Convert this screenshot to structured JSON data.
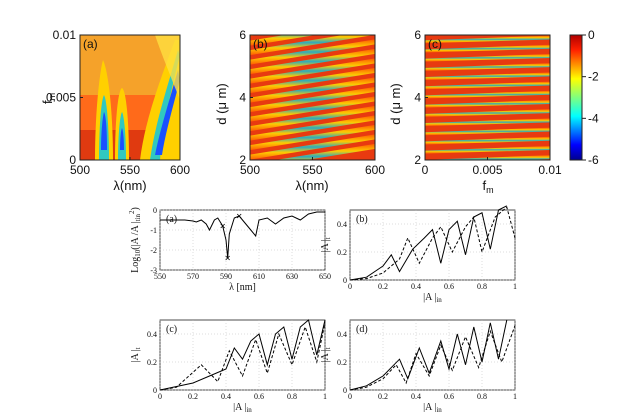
{
  "figure": {
    "top_row": {
      "panels": [
        {
          "label": "(a)",
          "xlabel": "λ(nm)",
          "ylabel": "f",
          "ylabel_sub": "m",
          "xticks": [
            "500",
            "550",
            "600"
          ],
          "yticks": [
            "0",
            "0.005",
            "0.01"
          ]
        },
        {
          "label": "(b)",
          "xlabel": "λ(nm)",
          "ylabel": "d (μ m)",
          "xticks": [
            "500",
            "550",
            "600"
          ],
          "yticks": [
            "2",
            "4",
            "6"
          ]
        },
        {
          "label": "(c)",
          "xlabel": "f",
          "xlabel_sub": "m",
          "ylabel": "d (μ m)",
          "xticks": [
            "0",
            "0.005",
            "0.01"
          ],
          "yticks": [
            "2",
            "4",
            "6"
          ]
        }
      ],
      "colorbar": {
        "ticks": [
          "0",
          "-2",
          "-4",
          "-6"
        ],
        "range": [
          -6,
          0
        ],
        "colormap": "jet"
      }
    },
    "bottom_grid": {
      "panels": [
        {
          "label": "(a)",
          "ylabel": "Log",
          "ylabel_sub": "10",
          "ylabel_rest": "(|A /A |",
          "ylabel_sub2": "t",
          "ylabel_sub3": "in",
          "ylabel_sup": "2",
          "ylabel_end": ")",
          "xlabel": "λ [nm]",
          "xticks": [
            "550",
            "570",
            "590",
            "610",
            "630",
            "650"
          ],
          "yticks": [
            "0",
            "-1",
            "-2",
            "-3"
          ]
        },
        {
          "label": "(b)",
          "ylabel": "|A |",
          "ylabel_sub": "t",
          "xlabel": "|A |",
          "xlabel_sub": "in",
          "xticks": [
            "0",
            "0.2",
            "0.4",
            "0.6",
            "0.8",
            "1"
          ],
          "yticks": [
            "0",
            "0.2",
            "0.4"
          ]
        },
        {
          "label": "(c)",
          "ylabel": "|A |",
          "ylabel_sub": "t",
          "xlabel": "|A |",
          "xlabel_sub": "in",
          "xticks": [
            "0",
            "0.2",
            "0.4",
            "0.6",
            "0.8",
            "1"
          ],
          "yticks": [
            "0",
            "0.2",
            "0.4"
          ]
        },
        {
          "label": "(d)",
          "ylabel": "|A |",
          "ylabel_sub": "t",
          "xlabel": "|A |",
          "xlabel_sub": "in",
          "xticks": [
            "0",
            "0.2",
            "0.4",
            "0.6",
            "0.8",
            "1"
          ],
          "yticks": [
            "0",
            "0.2",
            "0.4"
          ]
        }
      ]
    }
  },
  "chart_data": [
    {
      "type": "heatmap",
      "panel": "top-a",
      "x_range": [
        500,
        600
      ],
      "y_range": [
        0,
        0.01
      ],
      "z_range": [
        -6,
        0
      ],
      "features": "three U-shaped low-transmission valleys near 510, 533 and 575 nm"
    },
    {
      "type": "heatmap",
      "panel": "top-b",
      "x_range": [
        500,
        600
      ],
      "y_range": [
        2,
        6
      ],
      "z_range": [
        -6,
        0
      ],
      "features": "about 14 tilted narrow resonance bands rising with wavelength"
    },
    {
      "type": "heatmap",
      "panel": "top-c",
      "x_range": [
        0,
        0.01
      ],
      "y_range": [
        2,
        6
      ],
      "z_range": [
        -6,
        0
      ],
      "features": "about 14 nearly horizontal resonance bands slightly rising with f_m"
    },
    {
      "type": "line",
      "panel": "bottom-a",
      "x_range": [
        550,
        650
      ],
      "y_range": [
        -3,
        0
      ],
      "series": [
        {
          "x": [
            550,
            555,
            560,
            565,
            570,
            572,
            575,
            578,
            580,
            583,
            585,
            588,
            590,
            591,
            592,
            595,
            598,
            600,
            605,
            608,
            610,
            615,
            620,
            625,
            630,
            635,
            640,
            645,
            650
          ],
          "y": [
            -0.5,
            -0.5,
            -0.5,
            -0.5,
            -0.55,
            -0.6,
            -0.5,
            -0.7,
            -1.0,
            -0.5,
            -0.4,
            -0.8,
            -1.5,
            -2.4,
            -1.2,
            -0.4,
            -0.3,
            -0.5,
            -1.0,
            -1.3,
            -0.5,
            -0.4,
            -0.7,
            -0.4,
            -0.3,
            -0.5,
            -0.2,
            -0.1,
            -0.1
          ]
        }
      ],
      "markers_x": [
        588,
        591,
        598
      ]
    },
    {
      "type": "line",
      "panel": "bottom-b",
      "x_range": [
        0,
        1
      ],
      "y_range": [
        0,
        0.5
      ],
      "series": [
        {
          "name": "solid",
          "style": "solid",
          "x": [
            0,
            0.1,
            0.2,
            0.25,
            0.3,
            0.38,
            0.45,
            0.5,
            0.55,
            0.6,
            0.65,
            0.7,
            0.75,
            0.8,
            0.85,
            0.9,
            0.95
          ],
          "y": [
            0,
            0.02,
            0.1,
            0.18,
            0.06,
            0.22,
            0.3,
            0.36,
            0.12,
            0.36,
            0.42,
            0.18,
            0.45,
            0.48,
            0.22,
            0.5,
            0.53
          ]
        },
        {
          "name": "dashed",
          "style": "dashed",
          "x": [
            0,
            0.1,
            0.2,
            0.3,
            0.35,
            0.42,
            0.5,
            0.55,
            0.62,
            0.7,
            0.75,
            0.8,
            0.88,
            0.95,
            1.0
          ],
          "y": [
            0,
            0.01,
            0.05,
            0.15,
            0.3,
            0.12,
            0.3,
            0.38,
            0.2,
            0.38,
            0.45,
            0.2,
            0.45,
            0.52,
            0.3
          ]
        }
      ]
    },
    {
      "type": "line",
      "panel": "bottom-c",
      "x_range": [
        0,
        1
      ],
      "y_range": [
        0,
        0.5
      ],
      "series": [
        {
          "name": "solid",
          "style": "solid",
          "x": [
            0,
            0.2,
            0.3,
            0.4,
            0.45,
            0.5,
            0.55,
            0.6,
            0.65,
            0.7,
            0.75,
            0.8,
            0.85,
            0.9,
            0.95,
            1.0
          ],
          "y": [
            0,
            0.05,
            0.1,
            0.15,
            0.3,
            0.22,
            0.35,
            0.4,
            0.18,
            0.4,
            0.45,
            0.22,
            0.45,
            0.5,
            0.25,
            0.5
          ]
        },
        {
          "name": "dashed",
          "style": "dashed",
          "x": [
            0,
            0.1,
            0.25,
            0.35,
            0.42,
            0.5,
            0.58,
            0.65,
            0.72,
            0.8,
            0.88,
            0.95,
            1.0
          ],
          "y": [
            0,
            0.02,
            0.18,
            0.06,
            0.28,
            0.1,
            0.36,
            0.12,
            0.4,
            0.18,
            0.45,
            0.2,
            0.48
          ]
        }
      ]
    },
    {
      "type": "line",
      "panel": "bottom-d",
      "x_range": [
        0,
        1
      ],
      "y_range": [
        0,
        0.5
      ],
      "series": [
        {
          "name": "solid",
          "style": "solid",
          "x": [
            0,
            0.1,
            0.2,
            0.3,
            0.35,
            0.42,
            0.48,
            0.55,
            0.6,
            0.65,
            0.7,
            0.75,
            0.8,
            0.85,
            0.9,
            0.95
          ],
          "y": [
            0,
            0.03,
            0.1,
            0.22,
            0.08,
            0.3,
            0.12,
            0.35,
            0.15,
            0.4,
            0.18,
            0.45,
            0.2,
            0.48,
            0.22,
            0.5
          ]
        },
        {
          "name": "dashed",
          "style": "dashed",
          "x": [
            0,
            0.1,
            0.2,
            0.28,
            0.34,
            0.4,
            0.48,
            0.55,
            0.62,
            0.7,
            0.78,
            0.85,
            0.92,
            1.0
          ],
          "y": [
            0,
            0.02,
            0.08,
            0.18,
            0.05,
            0.26,
            0.1,
            0.32,
            0.14,
            0.38,
            0.16,
            0.42,
            0.2,
            0.46
          ]
        }
      ]
    }
  ]
}
